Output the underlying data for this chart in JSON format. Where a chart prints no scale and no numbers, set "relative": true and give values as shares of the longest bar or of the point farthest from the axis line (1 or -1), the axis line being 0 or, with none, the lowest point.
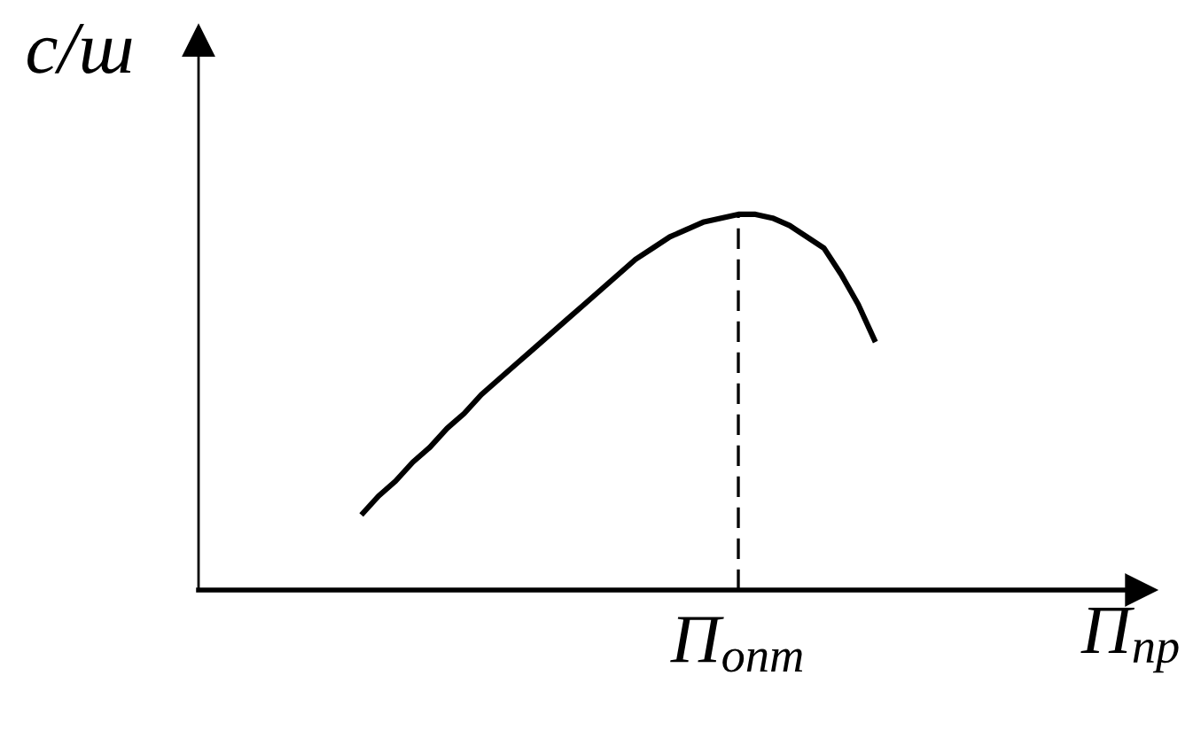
{
  "chart_data": {
    "type": "line",
    "relative": true,
    "xlabel": "П$_{пр}$",
    "ylabel": "с/ш",
    "categories": [
      null,
      null,
      null,
      null,
      null,
      null,
      null,
      null,
      null,
      null,
      null,
      null,
      null,
      null,
      null,
      null,
      null,
      null,
      null,
      null,
      null,
      null,
      null,
      null,
      null,
      null,
      null,
      null,
      null,
      null,
      null,
      null,
      null,
      null,
      null,
      null,
      null,
      null,
      null,
      null,
      null,
      null,
      null,
      null,
      null,
      null,
      null,
      null,
      null,
      null,
      null,
      null,
      null,
      null,
      null
    ],
    "series": [
      {
        "color": "#000000",
        "values": [
          null,
          null,
          null,
          null,
          null,
          null,
          null,
          null,
          null,
          0.2,
          0.25,
          0.29,
          0.34,
          0.38,
          0.43,
          0.47,
          0.52,
          0.56,
          0.6,
          0.64,
          0.68,
          0.72,
          0.76,
          0.8,
          0.84,
          0.88,
          0.91,
          0.94,
          0.96,
          0.98,
          0.99,
          1.0,
          1.0,
          0.99,
          0.97,
          0.94,
          0.91,
          0.84,
          0.76,
          0.66,
          null,
          null,
          null,
          null,
          null,
          null,
          null,
          null,
          null,
          null,
          null,
          null,
          null,
          null,
          null
        ]
      }
    ],
    "annotations": [
      "П$_{опт}$"
    ]
  }
}
